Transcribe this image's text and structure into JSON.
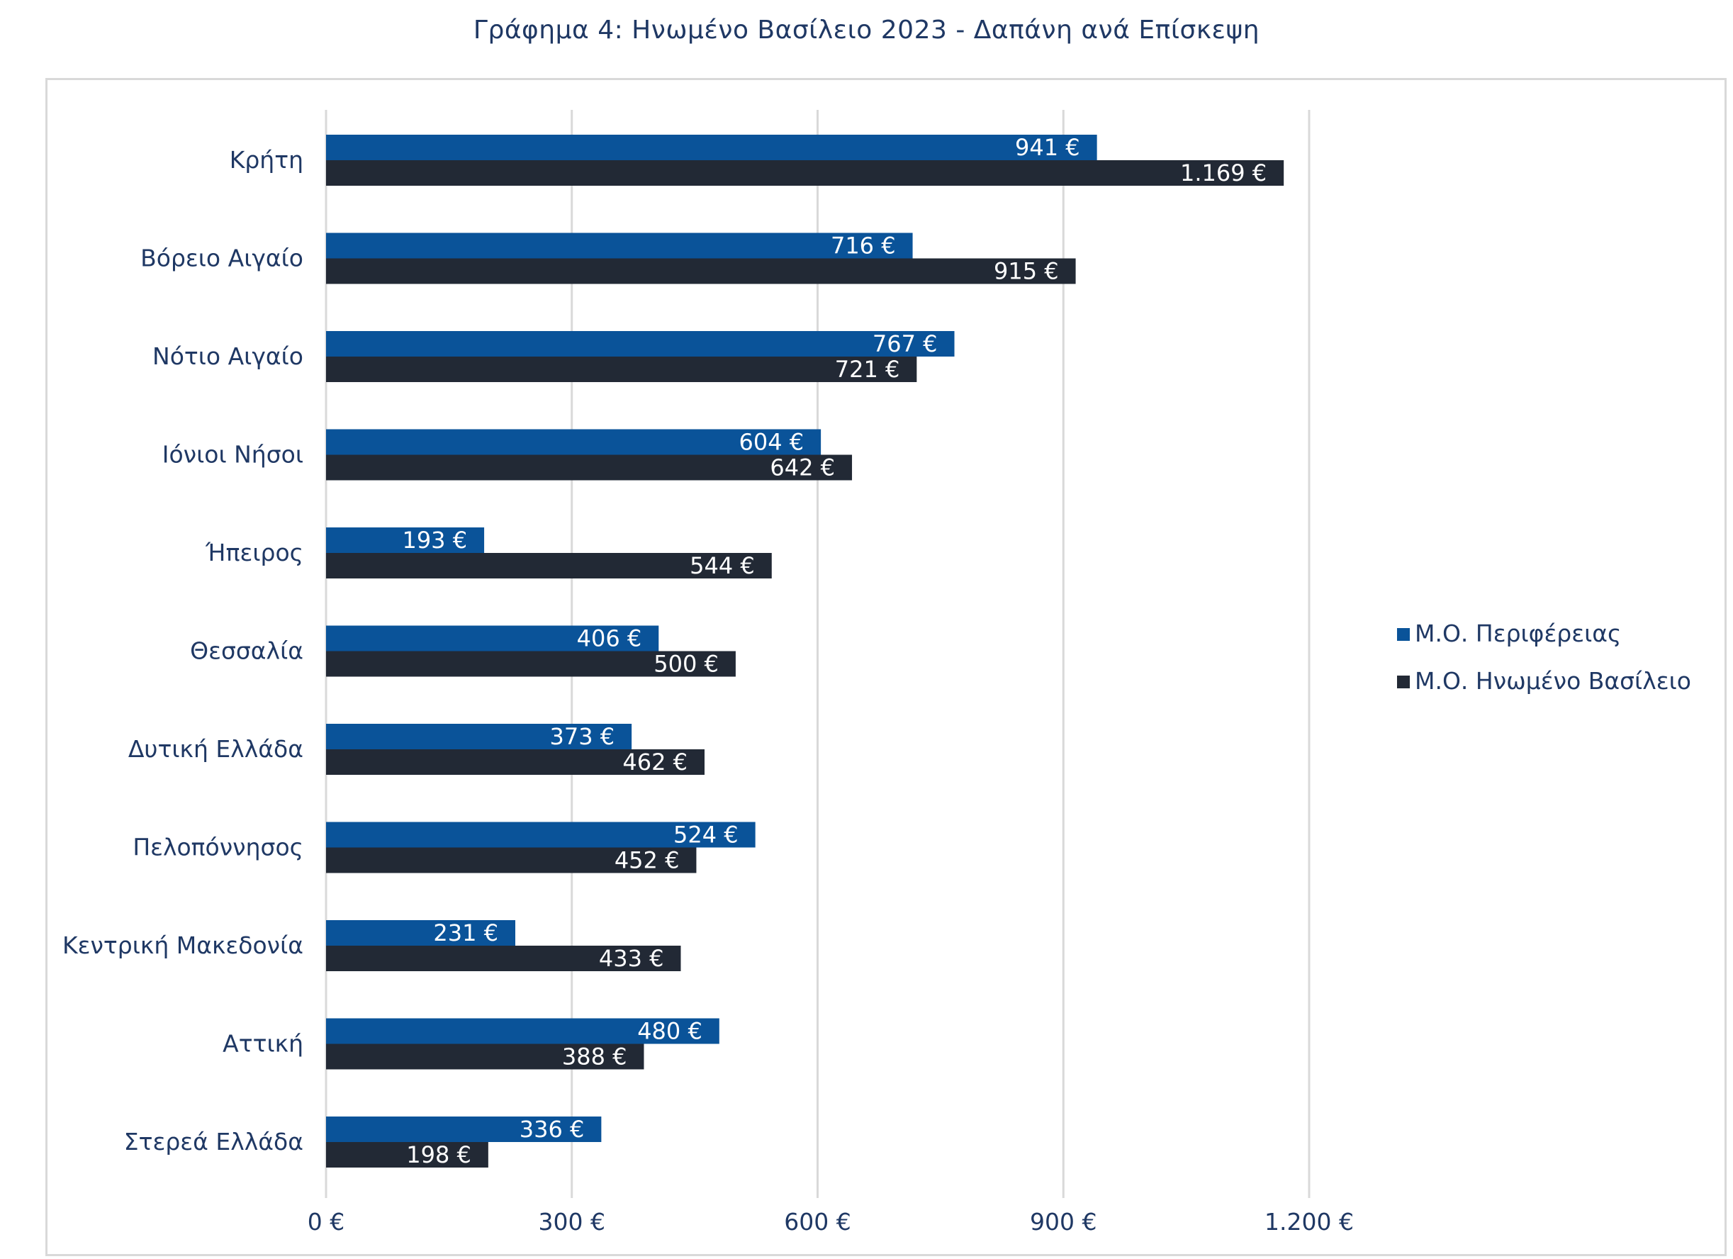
{
  "chart_data": {
    "type": "bar",
    "orientation": "horizontal",
    "title": "Γράφημα 4: Ηνωμένο Βασίλειο 2023 - Δαπάνη ανά Επίσκεψη",
    "categories": [
      "Κρήτη",
      "Βόρειο Αιγαίο",
      "Νότιο Αιγαίο",
      "Ιόνιοι Νήσοι",
      "Ήπειρος",
      "Θεσσαλία",
      "Δυτική Ελλάδα",
      "Πελοπόννησος",
      "Κεντρική Μακεδονία",
      "Αττική",
      "Στερεά Ελλάδα"
    ],
    "series": [
      {
        "name": "Μ.Ο. Περιφέρειας",
        "color": "#0a5399",
        "values": [
          941,
          716,
          767,
          604,
          193,
          406,
          373,
          524,
          231,
          480,
          336
        ],
        "labels": [
          "941 €",
          "716 €",
          "767 €",
          "604 €",
          "193 €",
          "406 €",
          "373 €",
          "524 €",
          "231 €",
          "480 €",
          "336 €"
        ]
      },
      {
        "name": "Μ.Ο. Ηνωμένο Βασίλειο",
        "color": "#222935",
        "values": [
          1169,
          915,
          721,
          642,
          544,
          500,
          462,
          452,
          433,
          388,
          198
        ],
        "labels": [
          "1.169 €",
          "915 €",
          "721 €",
          "642 €",
          "544 €",
          "500 €",
          "462 €",
          "452 €",
          "433 €",
          "388 €",
          "198 €"
        ]
      }
    ],
    "xlim": [
      0,
      1200
    ],
    "ticks": [
      0,
      300,
      600,
      900,
      1200
    ],
    "tick_labels": [
      "0 €",
      "300 €",
      "600 €",
      "900 €",
      "1.200 €"
    ],
    "grid": true,
    "gridline_color": "#d9d9d9",
    "legend_position": "right"
  }
}
